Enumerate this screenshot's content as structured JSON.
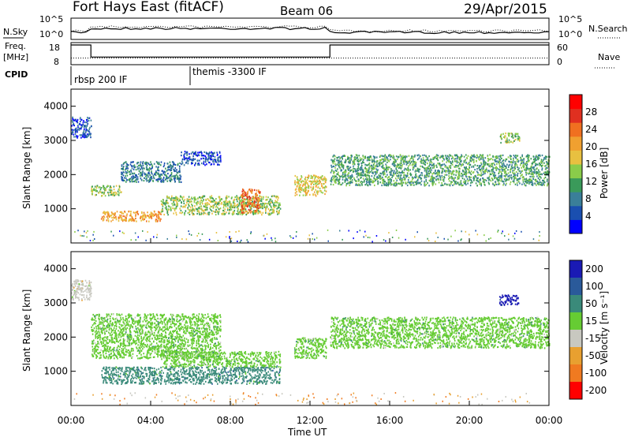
{
  "header": {
    "title": "Fort Hays East (fitACF)",
    "beam": "Beam 06",
    "date": "29/Apr/2015"
  },
  "noise_panel": {
    "left_label": "N.Sky",
    "right_label": "N.Search",
    "left_ticks": [
      "10^5",
      "10^0"
    ],
    "right_ticks": [
      "10^5",
      "10^0"
    ]
  },
  "freq_panel": {
    "left_label_1": "Freq.",
    "left_label_2": "[MHz]",
    "right_label": "Nave",
    "left_ticks": [
      "18",
      "8"
    ],
    "right_ticks": [
      "60",
      "0"
    ],
    "freq_segments": [
      {
        "start_hr": 0.0,
        "end_hr": 1.0,
        "value": 17.6
      },
      {
        "start_hr": 1.0,
        "end_hr": 13.0,
        "value": 10.5
      },
      {
        "start_hr": 13.0,
        "end_hr": 24.0,
        "value": 17.6
      }
    ],
    "nave_level": 18
  },
  "cpid": {
    "label": "CPID",
    "segments": [
      {
        "start_hr": 0.0,
        "label": "rbsp 200 IF"
      },
      {
        "start_hr": 6.0,
        "label": "themis -3300 IF"
      }
    ]
  },
  "axes": {
    "xlabel": "Time UT",
    "xticks": [
      "00:00",
      "04:00",
      "08:00",
      "12:00",
      "16:00",
      "20:00",
      "00:00"
    ],
    "ylabel": "Slant Range [km]",
    "yticks": [
      "1000",
      "2000",
      "3000",
      "4000"
    ],
    "ylim": [
      0,
      4500
    ],
    "xlim_hours": [
      0,
      24
    ]
  },
  "colorbars": {
    "power": {
      "label": "Power [dB]",
      "ticks": [
        "4",
        "8",
        "12",
        "16",
        "20",
        "24",
        "28"
      ],
      "colors": [
        "#0000ff",
        "#1a4fb0",
        "#3a7f99",
        "#3a9a5a",
        "#8acc4a",
        "#e8c040",
        "#f0a030",
        "#f07020",
        "#e03020",
        "#ff0000"
      ]
    },
    "velocity": {
      "label": "Velocity [m s⁻¹]",
      "ticks": [
        "200",
        "100",
        "50",
        "15",
        "-15",
        "-50",
        "-100",
        "-200"
      ],
      "colors": [
        "#1a1ab4",
        "#2a5a9a",
        "#3a8a7a",
        "#66cc33",
        "#c8c8c0",
        "#e8a030",
        "#f07a20",
        "#ff0000"
      ]
    }
  },
  "chart_data": {
    "type": "heatmap",
    "title": "Fort Hays East (fitACF)",
    "xlabel": "Time UT",
    "ylabel": "Slant Range [km]",
    "ylim": [
      0,
      4500
    ],
    "power_bands": [
      {
        "t0": 0.0,
        "t1": 1.0,
        "r0": 3100,
        "r1": 3700,
        "level": 1
      },
      {
        "t0": 1.0,
        "t1": 2.5,
        "r0": 1400,
        "r1": 1700,
        "level": 4
      },
      {
        "t0": 2.5,
        "t1": 5.5,
        "r0": 1800,
        "r1": 2400,
        "level": 2
      },
      {
        "t0": 5.5,
        "t1": 7.5,
        "r0": 2300,
        "r1": 2700,
        "level": 1
      },
      {
        "t0": 1.5,
        "t1": 4.5,
        "r0": 650,
        "r1": 950,
        "level": 6
      },
      {
        "t0": 4.5,
        "t1": 10.5,
        "r0": 850,
        "r1": 1400,
        "level": 4
      },
      {
        "t0": 8.5,
        "t1": 9.5,
        "r0": 900,
        "r1": 1600,
        "level": 7
      },
      {
        "t0": 11.2,
        "t1": 12.8,
        "r0": 1400,
        "r1": 2000,
        "level": 5
      },
      {
        "t0": 13.0,
        "t1": 24.0,
        "r0": 1700,
        "r1": 2600,
        "level": 3
      },
      {
        "t0": 21.5,
        "t1": 22.5,
        "r0": 2950,
        "r1": 3250,
        "level": 4
      }
    ],
    "velocity_bands": [
      {
        "t0": 0.0,
        "t1": 1.0,
        "r0": 3100,
        "r1": 3700,
        "class": "-15"
      },
      {
        "t0": 1.0,
        "t1": 7.5,
        "r0": 1400,
        "r1": 2700,
        "class": "15"
      },
      {
        "t0": 1.5,
        "t1": 10.5,
        "r0": 650,
        "r1": 1150,
        "class": "50"
      },
      {
        "t0": 4.5,
        "t1": 10.5,
        "r0": 1150,
        "r1": 1600,
        "class": "15"
      },
      {
        "t0": 11.2,
        "t1": 12.8,
        "r0": 1400,
        "r1": 2000,
        "class": "15"
      },
      {
        "t0": 13.0,
        "t1": 24.0,
        "r0": 1700,
        "r1": 2600,
        "class": "15"
      },
      {
        "t0": 21.5,
        "t1": 22.5,
        "r0": 2950,
        "r1": 3250,
        "class": "200"
      }
    ]
  }
}
